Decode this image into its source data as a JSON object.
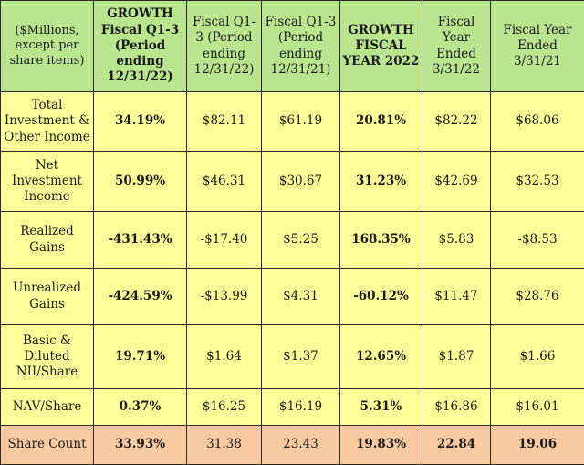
{
  "table": {
    "headers": [
      {
        "text": "($Millions, except per share items)",
        "bold": false
      },
      {
        "text": "GROWTH Fiscal Q1-3 (Period ending 12/31/22)",
        "bold": true
      },
      {
        "text": "Fiscal Q1-3 (Period ending 12/31/22)",
        "bold": false
      },
      {
        "text": "Fiscal Q1-3 (Period ending 12/31/21)",
        "bold": false
      },
      {
        "text": "GROWTH FISCAL YEAR 2022",
        "bold": true
      },
      {
        "text": "Fiscal Year Ended 3/31/22",
        "bold": false
      },
      {
        "text": "Fiscal Year Ended 3/31/21",
        "bold": false
      }
    ],
    "rows": [
      {
        "label": "Total Investment & Other Income",
        "cells": [
          "34.19%",
          "$82.11",
          "$61.19",
          "20.81%",
          "$82.22",
          "$68.06"
        ]
      },
      {
        "label": "Net Investment Income",
        "cells": [
          "50.99%",
          "$46.31",
          "$30.67",
          "31.23%",
          "$42.69",
          "$32.53"
        ]
      },
      {
        "label": "Realized Gains",
        "cells": [
          "-431.43%",
          "-$17.40",
          "$5.25",
          "168.35%",
          "$5.83",
          "-$8.53"
        ]
      },
      {
        "label": "Unrealized Gains",
        "cells": [
          "-424.59%",
          "-$13.99",
          "$4.31",
          "-60.12%",
          "$11.47",
          "$28.76"
        ]
      },
      {
        "label": "Basic & Diluted NII/Share",
        "cells": [
          "19.71%",
          "$1.64",
          "$1.37",
          "12.65%",
          "$1.87",
          "$1.66"
        ]
      },
      {
        "label": "NAV/Share",
        "cells": [
          "0.37%",
          "$16.25",
          "$16.19",
          "5.31%",
          "$16.86",
          "$16.01"
        ]
      }
    ],
    "share_row": {
      "label": "Share Count",
      "cells": [
        "33.93%",
        "31.38",
        "23.43",
        "19.83%",
        "22.84",
        "19.06"
      ]
    }
  },
  "colors": {
    "header_bg": "#b9e58f",
    "body_bg": "#ffff99",
    "share_bg": "#f9c99f"
  }
}
